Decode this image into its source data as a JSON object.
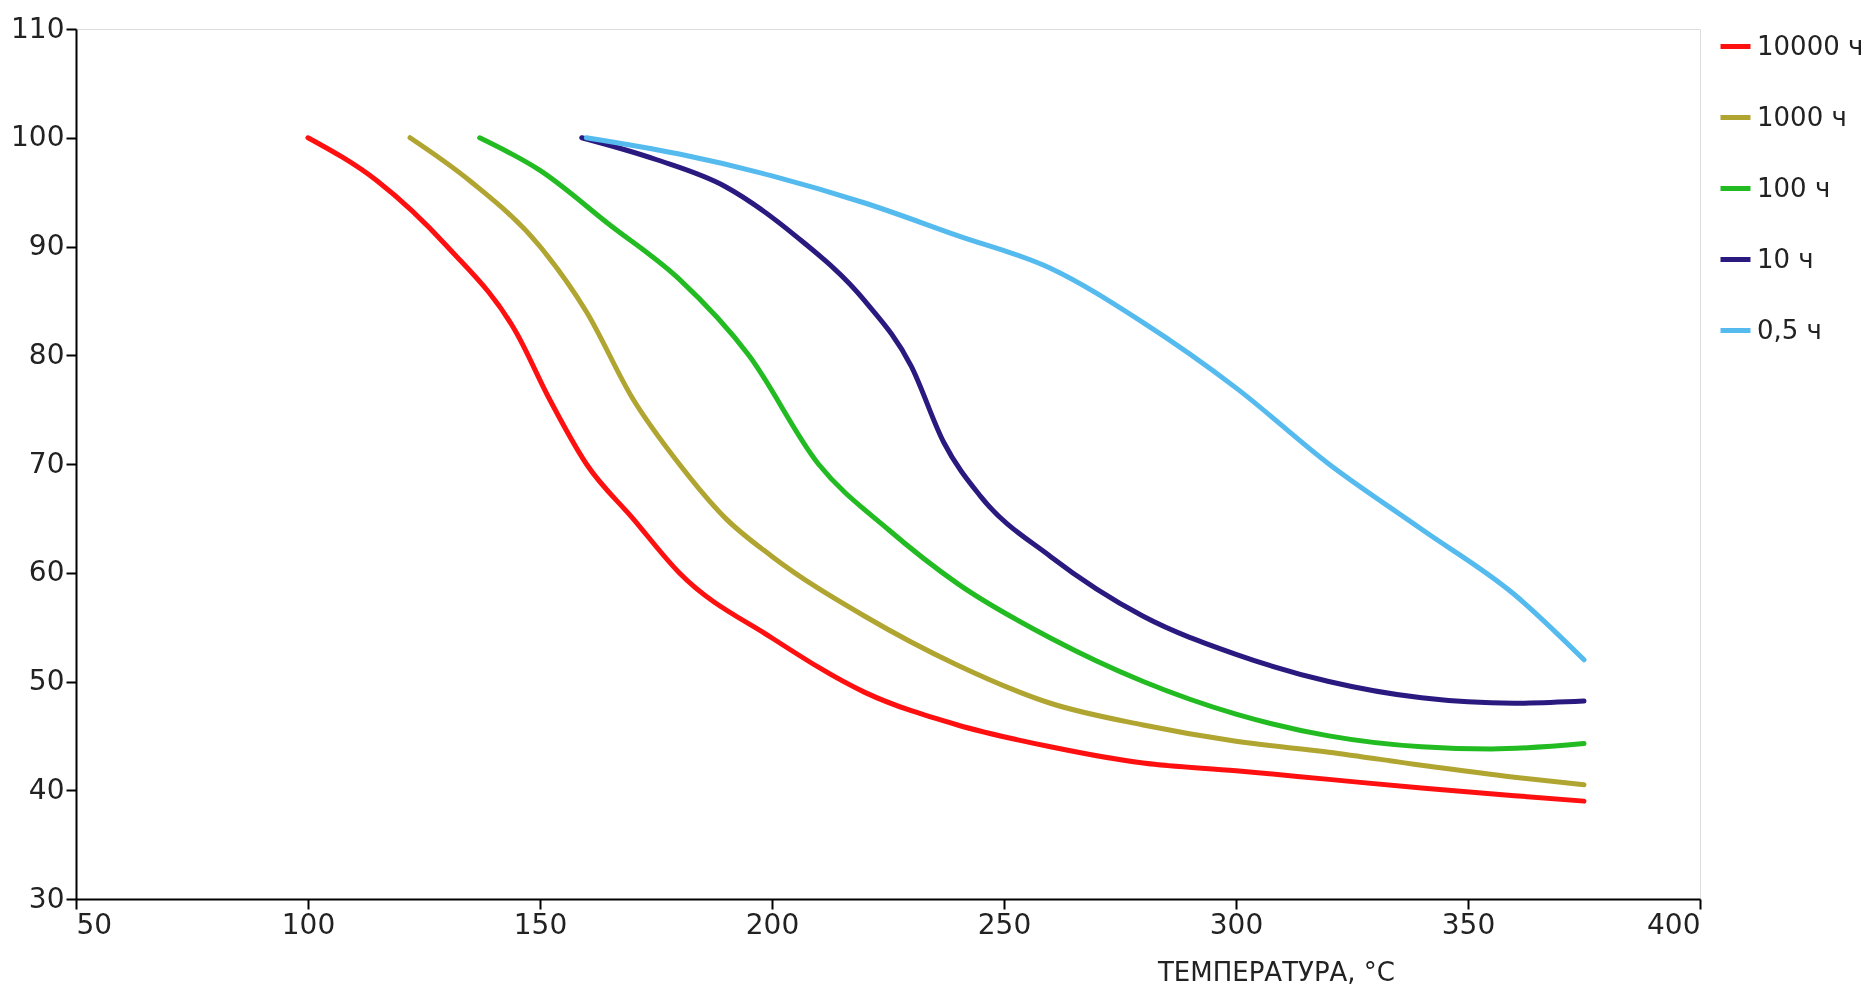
{
  "chart_data": {
    "type": "line",
    "xlabel": "ТЕМПЕРАТУРА, °C",
    "xlim": [
      50,
      400
    ],
    "xticks": [
      50,
      100,
      150,
      200,
      250,
      300,
      350,
      400
    ],
    "ylim": [
      30,
      110
    ],
    "yticks": [
      30,
      40,
      50,
      60,
      70,
      80,
      90,
      100,
      110
    ],
    "grid": false,
    "legend": "top right",
    "marker": "none",
    "line_style": "solid",
    "series": [
      {
        "name": "10000 ч",
        "color": "#ff1010",
        "x": [
          100,
          115,
          130,
          145,
          152,
          160,
          170,
          180,
          200,
          220,
          240,
          260,
          280,
          300,
          320,
          340,
          360,
          375
        ],
        "values": [
          100,
          96,
          90,
          82,
          76,
          70,
          65,
          60,
          54,
          49,
          46,
          44,
          42.5,
          41.8,
          41,
          40.2,
          39.5,
          39
        ]
      },
      {
        "name": "1000 ч",
        "color": "#b0a530",
        "x": [
          122,
          135,
          150,
          160,
          170,
          180,
          190,
          200,
          220,
          240,
          260,
          280,
          300,
          320,
          340,
          360,
          375
        ],
        "values": [
          100,
          96,
          90,
          84,
          76,
          70,
          65,
          61.5,
          56,
          51.5,
          48,
          46,
          44.5,
          43.5,
          42.3,
          41.2,
          40.5
        ]
      },
      {
        "name": "100 ч",
        "color": "#22bb22",
        "x": [
          137,
          150,
          165,
          180,
          195,
          210,
          225,
          240,
          260,
          280,
          300,
          320,
          340,
          355,
          375
        ],
        "values": [
          100,
          97,
          92,
          87,
          80,
          70,
          64,
          59,
          54,
          50,
          47,
          45,
          44,
          43.8,
          44.3
        ]
      },
      {
        "name": "10 ч",
        "color": "#2a1a80",
        "x": [
          159,
          175,
          190,
          205,
          220,
          230,
          237,
          245,
          260,
          280,
          300,
          320,
          340,
          360,
          375
        ],
        "values": [
          100,
          98,
          95.5,
          91,
          85,
          79,
          72,
          67,
          61.5,
          56,
          52.5,
          50,
          48.5,
          48,
          48.2
        ]
      },
      {
        "name": "0,5 ч",
        "color": "#55bbee",
        "x": [
          160,
          180,
          200,
          220,
          240,
          260,
          280,
          300,
          320,
          340,
          360,
          375
        ],
        "values": [
          100,
          98.5,
          96.5,
          94,
          91,
          88,
          83,
          77,
          70,
          64,
          58,
          52
        ]
      }
    ]
  }
}
